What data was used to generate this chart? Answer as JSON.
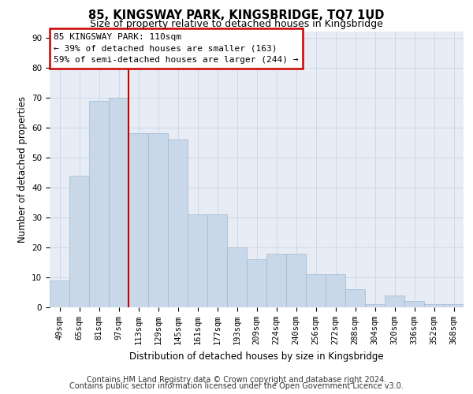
{
  "title": "85, KINGSWAY PARK, KINGSBRIDGE, TQ7 1UD",
  "subtitle": "Size of property relative to detached houses in Kingsbridge",
  "xlabel": "Distribution of detached houses by size in Kingsbridge",
  "ylabel": "Number of detached properties",
  "categories": [
    "49sqm",
    "65sqm",
    "81sqm",
    "97sqm",
    "113sqm",
    "129sqm",
    "145sqm",
    "161sqm",
    "177sqm",
    "193sqm",
    "209sqm",
    "224sqm",
    "240sqm",
    "256sqm",
    "272sqm",
    "288sqm",
    "304sqm",
    "320sqm",
    "336sqm",
    "352sqm",
    "368sqm"
  ],
  "values": [
    9,
    44,
    69,
    70,
    58,
    58,
    56,
    31,
    31,
    20,
    16,
    18,
    18,
    11,
    11,
    6,
    1,
    4,
    2,
    1,
    1
  ],
  "bar_color": "#c8d8e8",
  "bar_edge_color": "#a0b8d0",
  "red_line_x": 3.5,
  "line_label": "85 KINGSWAY PARK: 110sqm",
  "annotation_line1": "← 39% of detached houses are smaller (163)",
  "annotation_line2": "59% of semi-detached houses are larger (244) →",
  "annotation_box_color": "#ffffff",
  "annotation_box_edge_color": "#cc0000",
  "ylim": [
    0,
    92
  ],
  "yticks": [
    0,
    10,
    20,
    30,
    40,
    50,
    60,
    70,
    80,
    90
  ],
  "footer1": "Contains HM Land Registry data © Crown copyright and database right 2024.",
  "footer2": "Contains public sector information licensed under the Open Government Licence v3.0.",
  "grid_color": "#c8d4e8",
  "background_color": "#e8edf5",
  "title_fontsize": 10.5,
  "subtitle_fontsize": 9,
  "axis_label_fontsize": 8.5,
  "tick_fontsize": 7.5,
  "footer_fontsize": 7,
  "annotation_fontsize": 8
}
